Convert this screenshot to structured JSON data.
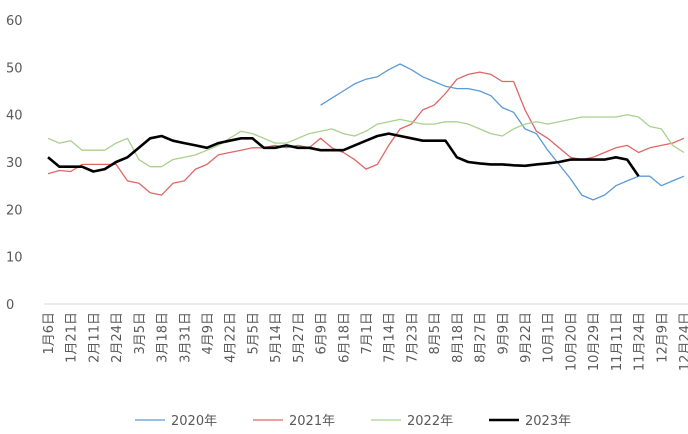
{
  "chart_data": {
    "type": "line",
    "categories": [
      "1月6日",
      null,
      "1月21日",
      null,
      "2月11日",
      null,
      "2月24日",
      null,
      "3月5日",
      null,
      "3月18日",
      null,
      "3月31日",
      null,
      "4月9日",
      null,
      "4月22日",
      null,
      "5月5日",
      null,
      "5月14日",
      null,
      "5月27日",
      null,
      "6月9日",
      null,
      "6月18日",
      null,
      "7月1日",
      null,
      "7月14日",
      null,
      "7月23日",
      null,
      "8月5日",
      null,
      "8月18日",
      null,
      "8月27日",
      null,
      "9月9日",
      null,
      "9月22日",
      null,
      "10月1日",
      null,
      "10月20日",
      null,
      "10月29日",
      null,
      "11月11日",
      null,
      "11月24日",
      null,
      "12月9日",
      null,
      "12月24日"
    ],
    "series": [
      {
        "name": "2020年",
        "color": "#5b9bd5",
        "width": 1.3,
        "values": [
          null,
          null,
          null,
          null,
          null,
          null,
          null,
          null,
          null,
          null,
          null,
          null,
          null,
          null,
          null,
          null,
          null,
          null,
          null,
          null,
          null,
          null,
          null,
          null,
          42,
          43.5,
          45,
          46.5,
          47.5,
          48,
          49.5,
          50.7,
          49.5,
          48,
          47,
          46,
          45.5,
          45.5,
          45,
          44,
          41.5,
          40.5,
          37,
          36,
          32.5,
          29.5,
          26.5,
          23,
          22,
          23,
          25,
          26,
          27,
          27,
          25,
          26,
          27
        ]
      },
      {
        "name": "2021年",
        "color": "#e06666",
        "width": 1.3,
        "values": [
          27.5,
          28.2,
          28,
          29.5,
          29.5,
          29.5,
          29.5,
          26,
          25.5,
          23.5,
          23,
          25.5,
          26,
          28.5,
          29.5,
          31.5,
          32,
          32.5,
          33,
          33,
          33.5,
          33,
          33.5,
          33,
          35,
          33,
          32,
          30.5,
          28.5,
          29.5,
          33.5,
          37,
          38,
          41,
          42,
          44.5,
          47.5,
          48.5,
          49,
          48.5,
          47,
          47,
          41,
          36.5,
          35,
          33,
          31,
          30.5,
          31,
          32,
          33,
          33.5,
          32,
          33,
          33.5,
          34,
          35
        ]
      },
      {
        "name": "2022年",
        "color": "#a9d18e",
        "width": 1.3,
        "values": [
          35,
          34,
          34.5,
          32.5,
          32.5,
          32.5,
          34,
          35,
          30.5,
          29,
          29,
          30.5,
          31,
          31.5,
          32.5,
          33.5,
          35,
          36.5,
          36,
          35,
          34,
          34,
          35,
          36,
          36.5,
          37,
          36,
          35.5,
          36.5,
          38,
          38.5,
          39,
          38.5,
          38,
          38,
          38.5,
          38.5,
          38,
          37,
          36,
          35.5,
          37,
          38,
          38.5,
          38,
          38.5,
          39,
          39.5,
          39.5,
          39.5,
          39.5,
          40,
          39.5,
          37.5,
          37,
          33.5,
          32
        ]
      },
      {
        "name": "2023年",
        "color": "#000000",
        "width": 2.6,
        "values": [
          31,
          29,
          29,
          29,
          28,
          28.5,
          30,
          31,
          33,
          35,
          35.5,
          34.5,
          34,
          33.5,
          33,
          34,
          34.5,
          35,
          35,
          33,
          33,
          33.5,
          33,
          33,
          32.5,
          32.5,
          32.5,
          33.5,
          34.5,
          35.5,
          36,
          35.5,
          35,
          34.5,
          34.5,
          34.5,
          31,
          30,
          29.7,
          29.5,
          29.5,
          29.3,
          29.2,
          29.5,
          29.7,
          30,
          30.5,
          30.5,
          30.5,
          30.5,
          31,
          30.5,
          27,
          null,
          null,
          null,
          null
        ]
      }
    ],
    "ylim": [
      0,
      60
    ],
    "yticks": [
      0,
      10,
      20,
      30,
      40,
      50,
      60
    ],
    "grid": false
  }
}
